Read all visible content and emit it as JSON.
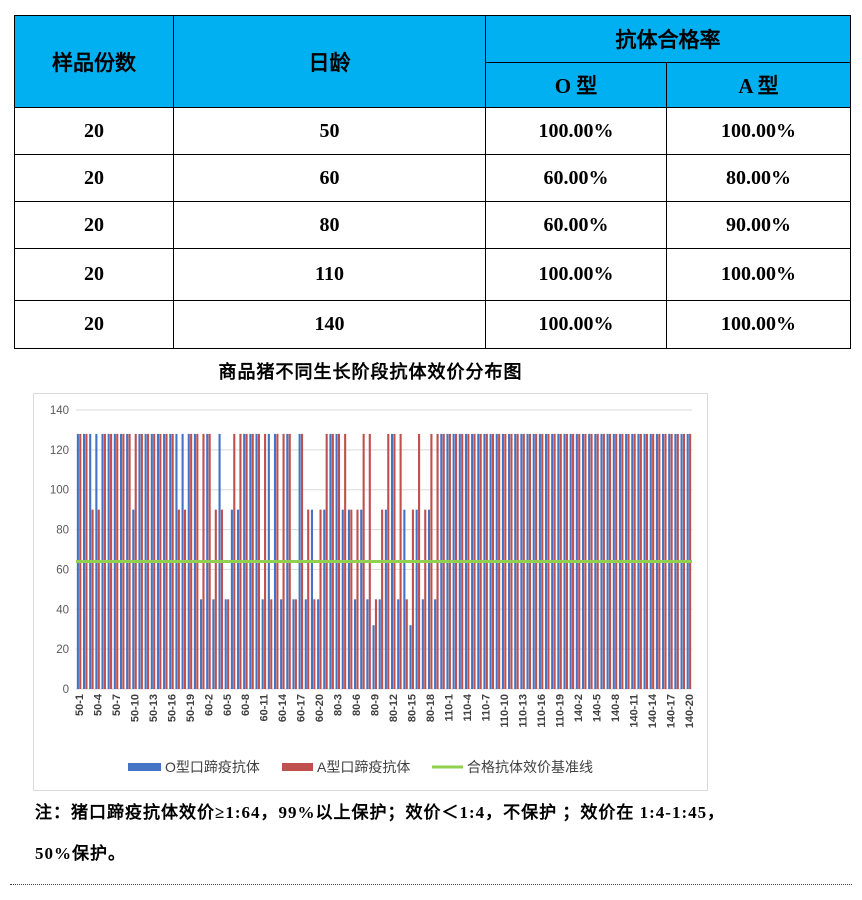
{
  "table": {
    "header_color": "#00b0f0",
    "headers": {
      "sample_count": "样品份数",
      "age": "日龄",
      "pass_rate": "抗体合格率",
      "type_o": "O 型",
      "type_a": "A 型"
    },
    "rows": [
      {
        "count": "20",
        "age": "50",
        "o": "100.00%",
        "a": "100.00%"
      },
      {
        "count": "20",
        "age": "60",
        "o": "60.00%",
        "a": "80.00%"
      },
      {
        "count": "20",
        "age": "80",
        "o": "60.00%",
        "a": "90.00%"
      },
      {
        "count": "20",
        "age": "110",
        "o": "100.00%",
        "a": "100.00%"
      },
      {
        "count": "20",
        "age": "140",
        "o": "100.00%",
        "a": "100.00%"
      }
    ]
  },
  "chart_data": {
    "type": "bar",
    "title": "商品猪不同生长阶段抗体效价分布图",
    "ylim": [
      0,
      140
    ],
    "yticks": [
      0,
      20,
      40,
      60,
      80,
      100,
      120,
      140
    ],
    "grid": true,
    "legend": "bottom",
    "x_tick_labels": [
      "50-1",
      "50-4",
      "50-7",
      "50-10",
      "50-13",
      "50-16",
      "50-19",
      "60-2",
      "60-5",
      "60-8",
      "60-11",
      "60-14",
      "60-17",
      "60-20",
      "80-3",
      "80-6",
      "80-9",
      "80-12",
      "80-15",
      "80-18",
      "110-1",
      "110-4",
      "110-7",
      "110-10",
      "110-13",
      "110-16",
      "110-19",
      "140-2",
      "140-5",
      "140-8",
      "140-11",
      "140-14",
      "140-17",
      "140-20"
    ],
    "series": [
      {
        "name": "O型口蹄疫抗体",
        "type": "bar",
        "color": "#4472c4",
        "values": [
          128,
          128,
          128,
          128,
          128,
          128,
          128,
          128,
          128,
          90,
          128,
          128,
          128,
          128,
          128,
          128,
          128,
          128,
          128,
          128,
          45,
          128,
          45,
          128,
          45,
          90,
          90,
          128,
          128,
          128,
          45,
          128,
          128,
          45,
          128,
          45,
          128,
          45,
          90,
          45,
          90,
          128,
          128,
          90,
          90,
          45,
          90,
          45,
          32,
          45,
          90,
          128,
          45,
          90,
          32,
          90,
          45,
          90,
          45,
          128,
          128,
          128,
          128,
          128,
          128,
          128,
          128,
          128,
          128,
          128,
          128,
          128,
          128,
          128,
          128,
          128,
          128,
          128,
          128,
          128,
          128,
          128,
          128,
          128,
          128,
          128,
          128,
          128,
          128,
          128,
          128,
          128,
          128,
          128,
          128,
          128,
          128,
          128,
          128,
          128
        ]
      },
      {
        "name": "A型口蹄疫抗体",
        "type": "bar",
        "color": "#c0504d",
        "values": [
          128,
          128,
          90,
          90,
          128,
          128,
          128,
          128,
          128,
          128,
          128,
          128,
          128,
          128,
          128,
          128,
          90,
          90,
          128,
          128,
          128,
          128,
          90,
          90,
          45,
          128,
          128,
          128,
          128,
          128,
          128,
          45,
          128,
          128,
          128,
          45,
          128,
          90,
          45,
          90,
          128,
          128,
          128,
          128,
          90,
          90,
          128,
          128,
          45,
          90,
          128,
          128,
          128,
          45,
          90,
          128,
          90,
          128,
          128,
          128,
          128,
          128,
          128,
          128,
          128,
          128,
          128,
          128,
          128,
          128,
          128,
          128,
          128,
          128,
          128,
          128,
          128,
          128,
          128,
          128,
          128,
          128,
          128,
          128,
          128,
          128,
          128,
          128,
          128,
          128,
          128,
          128,
          128,
          128,
          128,
          128,
          128,
          128,
          128,
          128
        ]
      },
      {
        "name": "合格抗体效价基准线",
        "type": "line",
        "color": "#92d050",
        "value": 64
      }
    ]
  },
  "note": {
    "line1": "注：猪口蹄疫抗体效价≥1:64，99%以上保护；效价＜1:4，不保护 ；效价在 1:4-1:45，",
    "line2": "50%保护。"
  }
}
